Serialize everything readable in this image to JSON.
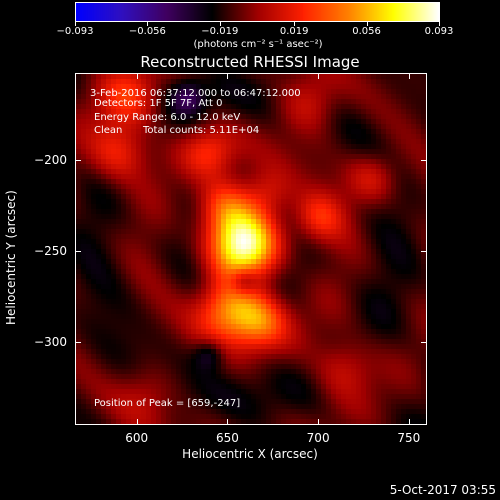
{
  "colorbar": {
    "ticks": [
      "−0.093",
      "−0.056",
      "−0.019",
      "0.019",
      "0.056",
      "0.093"
    ],
    "tick_values": [
      -0.093,
      -0.056,
      -0.019,
      0.019,
      0.056,
      0.093
    ],
    "units": "(photons cm⁻² s⁻¹ asec⁻²)",
    "colors": [
      "#0000ff",
      "#3010c0",
      "#400060",
      "#000000",
      "#a00000",
      "#ff2000",
      "#ff8000",
      "#ffff00",
      "#ffffff"
    ]
  },
  "chart_data": {
    "type": "heatmap",
    "title": "Reconstructed RHESSI Image",
    "xlabel": "Heliocentric X (arcsec)",
    "ylabel": "Heliocentric Y (arcsec)",
    "xlim": [
      566,
      760
    ],
    "ylim": [
      -346,
      -152
    ],
    "xticks": [
      600,
      650,
      700,
      750
    ],
    "yticks": [
      -200,
      -250,
      -300
    ],
    "zlim": [
      -0.093,
      0.093
    ],
    "info": {
      "time": "3-Feb-2016 06:37:12.000 to 06:47:12.000",
      "detectors": "Detectors: 1F 5F 7F, Att 0",
      "energy": "Energy Range: 6.0 - 12.0 keV",
      "clean_label": "Clean",
      "counts": "Total counts: 5.11E+04"
    },
    "peak_label": "Position of Peak = [659,-247]",
    "peak": [
      659,
      -247
    ],
    "sources": [
      {
        "x": 659,
        "y": -247,
        "peak": 0.093,
        "sigma": 14
      },
      {
        "x": 650,
        "y": -282,
        "peak": 0.06,
        "sigma": 12
      },
      {
        "x": 668,
        "y": -288,
        "peak": 0.05,
        "sigma": 11
      },
      {
        "x": 648,
        "y": -225,
        "peak": 0.045,
        "sigma": 11
      },
      {
        "x": 672,
        "y": -218,
        "peak": 0.03,
        "sigma": 10
      },
      {
        "x": 640,
        "y": -195,
        "peak": 0.03,
        "sigma": 10
      },
      {
        "x": 700,
        "y": -232,
        "peak": 0.035,
        "sigma": 10
      },
      {
        "x": 590,
        "y": -195,
        "peak": 0.04,
        "sigma": 12
      },
      {
        "x": 595,
        "y": -165,
        "peak": 0.035,
        "sigma": 12
      },
      {
        "x": 695,
        "y": -168,
        "peak": 0.03,
        "sigma": 12
      },
      {
        "x": 730,
        "y": -210,
        "peak": 0.03,
        "sigma": 10
      },
      {
        "x": 715,
        "y": -315,
        "peak": 0.03,
        "sigma": 12
      },
      {
        "x": 605,
        "y": -330,
        "peak": 0.02,
        "sigma": 12
      }
    ]
  },
  "datestamp": "5-Oct-2017 03:55"
}
